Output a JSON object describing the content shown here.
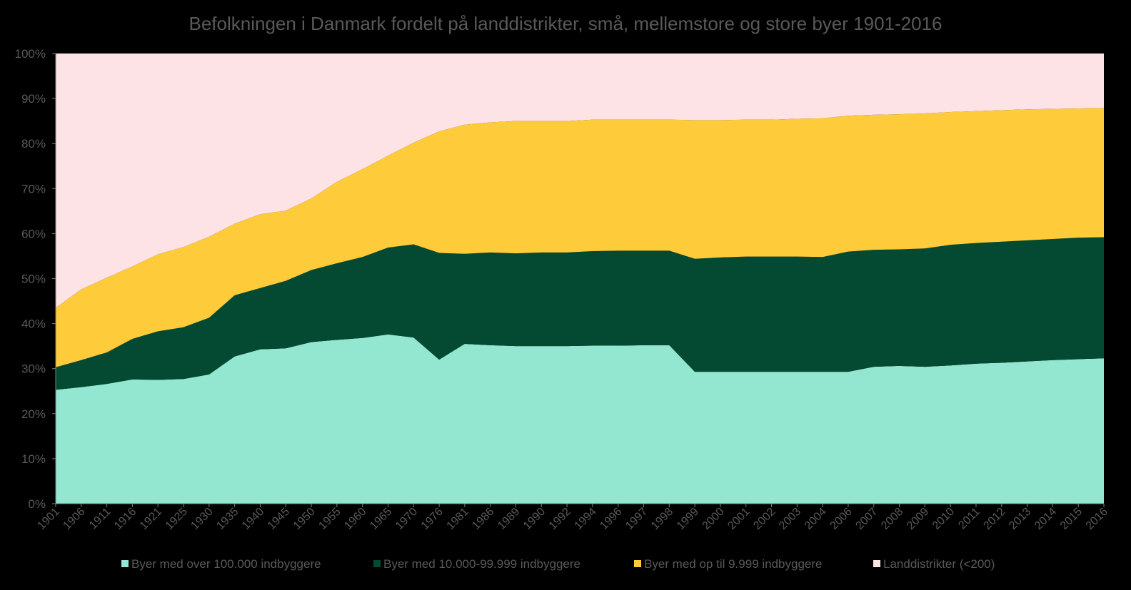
{
  "chart_data": {
    "type": "area",
    "stacked": true,
    "percent": true,
    "title": "Befolkningen i Danmark fordelt på landdistrikter, små, mellemstore og store byer 1901-2016",
    "xlabel": "",
    "ylabel": "",
    "ylim": [
      0,
      100
    ],
    "yticks": [
      "0%",
      "10%",
      "20%",
      "30%",
      "40%",
      "50%",
      "60%",
      "70%",
      "80%",
      "90%",
      "100%"
    ],
    "legend_position": "bottom",
    "grid": false,
    "categories": [
      "1901",
      "1906",
      "1911",
      "1916",
      "1921",
      "1925",
      "1930",
      "1935",
      "1940",
      "1945",
      "1950",
      "1955",
      "1960",
      "1965",
      "1970",
      "1976",
      "1981",
      "1986",
      "1989",
      "1990",
      "1992",
      "1994",
      "1996",
      "1997",
      "1998",
      "1999",
      "2000",
      "2001",
      "2002",
      "2003",
      "2004",
      "2006",
      "2007",
      "2008",
      "2009",
      "2010",
      "2011",
      "2012",
      "2013",
      "2014",
      "2015",
      "2016"
    ],
    "series": [
      {
        "name": "Byer med over 100.000 indbyggere",
        "color": "#93e6cf",
        "values": [
          25.3,
          25.9,
          26.6,
          27.6,
          27.5,
          27.7,
          28.7,
          32.7,
          34.3,
          34.5,
          35.9,
          36.4,
          36.8,
          37.6,
          36.9,
          32.0,
          35.5,
          35.2,
          35.0,
          35.0,
          35.0,
          35.1,
          35.1,
          35.2,
          35.2,
          29.3,
          29.3,
          29.3,
          29.3,
          29.3,
          29.3,
          29.3,
          30.4,
          30.6,
          30.4,
          30.7,
          31.1,
          31.3,
          31.6,
          31.9,
          32.1,
          32.3
        ]
      },
      {
        "name": "Byer med 10.000-99.999 indbyggere",
        "color": "#044a32",
        "values": [
          5.0,
          6.0,
          7.0,
          9.0,
          10.8,
          11.5,
          12.6,
          13.6,
          13.6,
          15.0,
          16.0,
          17.0,
          18.0,
          19.3,
          20.7,
          23.7,
          20.0,
          20.6,
          20.6,
          20.8,
          20.8,
          21.0,
          21.1,
          21.0,
          21.0,
          25.1,
          25.4,
          25.6,
          25.6,
          25.6,
          25.5,
          26.7,
          26.0,
          25.9,
          26.3,
          26.8,
          26.8,
          26.9,
          26.9,
          26.9,
          27.0,
          26.9
        ]
      },
      {
        "name": "Byer med op til 9.999 indbyggere",
        "color": "#fecb3b",
        "values": [
          13.2,
          15.7,
          16.6,
          16.1,
          17.1,
          17.8,
          18.0,
          15.9,
          16.4,
          15.6,
          15.9,
          18.1,
          19.5,
          20.4,
          22.6,
          27.0,
          28.7,
          28.9,
          29.4,
          29.2,
          29.2,
          29.2,
          29.1,
          29.1,
          29.1,
          30.8,
          30.5,
          30.4,
          30.4,
          30.6,
          30.8,
          30.2,
          30.0,
          30.0,
          30.0,
          29.5,
          29.3,
          29.2,
          29.1,
          28.9,
          28.7,
          28.7
        ]
      },
      {
        "name": "Landdistrikter (<200)",
        "color": "#fde2e6",
        "values": [
          56.5,
          52.4,
          49.8,
          47.3,
          44.6,
          43.0,
          40.7,
          37.8,
          35.7,
          34.9,
          32.2,
          28.5,
          25.7,
          22.7,
          19.8,
          17.3,
          15.8,
          15.3,
          15.0,
          15.0,
          15.0,
          14.7,
          14.7,
          14.7,
          14.7,
          14.8,
          14.8,
          14.7,
          14.7,
          14.5,
          14.4,
          13.8,
          13.6,
          13.5,
          13.3,
          13.0,
          12.8,
          12.6,
          12.4,
          12.3,
          12.2,
          12.1
        ]
      }
    ]
  }
}
